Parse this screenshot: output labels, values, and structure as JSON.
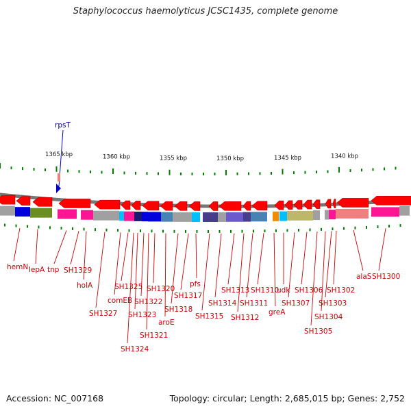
{
  "title": "Staphylococcus haemolyticus JCSC1435, complete genome",
  "footer": {
    "accession": "Accession: NC_007168",
    "summary": "Topology: circular; Length: 2,685,015 bp; Genes: 2,752"
  },
  "rna_label": "rpsT",
  "ruler": {
    "labels": [
      "1365 kbp",
      "1360 kbp",
      "1355 kbp",
      "1350 kbp",
      "1345 kbp",
      "1340 kbp"
    ]
  },
  "colors": {
    "gene_arrow": "#ff0000",
    "label": "#cc0000",
    "tick": "#008000",
    "rna": "#0000cd",
    "backbone": "#777777"
  },
  "cog_palette": [
    "#f08c00",
    "#0000dd",
    "#6b8e23",
    "#ff1493",
    "#a0a0a0",
    "#00bfff",
    "#191970",
    "#4682b4",
    "#483d8b",
    "#6a5acd",
    "#bdb76b",
    "#f08080"
  ],
  "genes": [
    "hemN",
    "lepA",
    "tnp",
    "SH1329",
    "holA",
    "SH1327",
    "comEB",
    "SH1325",
    "SH1324",
    "SH1323",
    "SH1322",
    "SH1321",
    "SH1320",
    "aroE",
    "SH1318",
    "SH1317",
    "pfs",
    "SH1315",
    "SH1314",
    "SH1313",
    "SH1312",
    "SH1311",
    "SH1310",
    "greA",
    "udk",
    "SH1307",
    "SH1306",
    "SH1305",
    "SH1304",
    "SH1303",
    "SH1302",
    "alaS",
    "SH1300"
  ]
}
